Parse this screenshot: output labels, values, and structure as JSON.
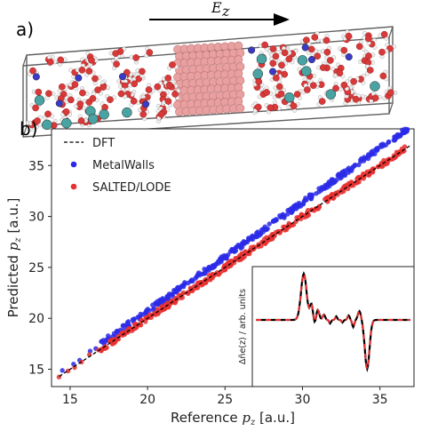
{
  "panel_a": {
    "label": "a)",
    "field_label": "E",
    "field_sub": "z",
    "colors": {
      "oxygen": "#d83a3a",
      "hydrogen": "#f0f0f0",
      "cation": "#4aa3a3",
      "anion": "#3a3ac8",
      "metal": "#e8a0a0",
      "box": "#606060"
    }
  },
  "panel_b": {
    "label": "b)"
  },
  "chart_data": {
    "type": "scatter",
    "xlabel_main": "Reference",
    "xlabel_var": "p",
    "xlabel_sub": "z",
    "xlabel_unit": "[a.u.]",
    "ylabel_main": "Predicted",
    "ylabel_var": "p",
    "ylabel_sub": "z",
    "ylabel_unit": "[a.u.]",
    "xlim": [
      13.8,
      37.2
    ],
    "ylim": [
      13.3,
      38.6
    ],
    "xticks": [
      "15",
      "20",
      "25",
      "30",
      "35"
    ],
    "yticks": [
      "15",
      "20",
      "25",
      "30",
      "35"
    ],
    "legend_position": "top-left",
    "series": [
      {
        "name": "DFT",
        "style": "dashed-line",
        "color": "#000000",
        "x": [
          14.3,
          37.0
        ],
        "y": [
          14.3,
          37.0
        ]
      },
      {
        "name": "MetalWalls",
        "style": "points",
        "color": "#2a2ae8",
        "offset_at_15": 0.4,
        "offset_at_35": 1.7,
        "x_range": [
          14.5,
          36.8
        ]
      },
      {
        "name": "SALTED/LODE",
        "style": "points",
        "color": "#e83030",
        "offset_at_15": 0.0,
        "offset_at_35": 0.0,
        "x_range": [
          14.2,
          36.6
        ]
      }
    ],
    "inset": {
      "ylabel": "Δñe(z) / arb. units",
      "type": "line",
      "series": [
        "black-solid",
        "red-dashed"
      ]
    }
  }
}
